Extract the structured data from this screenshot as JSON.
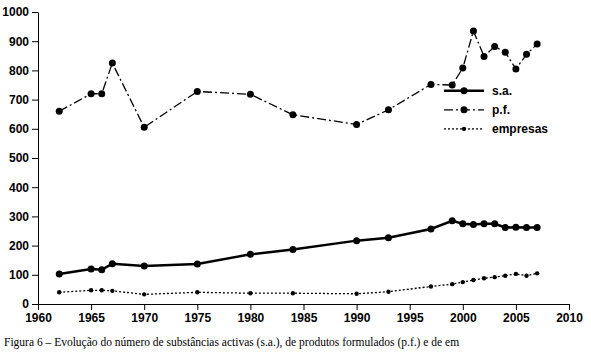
{
  "chart_data": {
    "type": "line",
    "title": "Figura 6 – Evolução do número de substâncias activas (s.a.), de produtos formulados (p.f.) e de em",
    "x": [
      1962,
      1965,
      1966,
      1967,
      1970,
      1975,
      1980,
      1984,
      1990,
      1993,
      1997,
      1999,
      2000,
      2001,
      2002,
      2003,
      2004,
      2005,
      2006,
      2007
    ],
    "series": [
      {
        "name": "s.a.",
        "color": "#000000",
        "line_style": "solid",
        "marker": "circle",
        "values": [
          103,
          120,
          117,
          138,
          130,
          137,
          170,
          187,
          217,
          227,
          257,
          285,
          275,
          272,
          275,
          275,
          262,
          263,
          262,
          262
        ]
      },
      {
        "name": "p.f.",
        "color": "#000000",
        "line_style": "dashdot",
        "marker": "circle",
        "values": [
          660,
          720,
          720,
          825,
          605,
          728,
          718,
          648,
          615,
          665,
          752,
          750,
          808,
          935,
          848,
          882,
          862,
          805,
          855,
          890
        ]
      },
      {
        "name": "empresas",
        "color": "#000000",
        "line_style": "dotted",
        "marker": "circle",
        "values": [
          40,
          47,
          47,
          45,
          33,
          40,
          37,
          37,
          35,
          42,
          60,
          68,
          75,
          82,
          88,
          92,
          97,
          103,
          97,
          105
        ]
      }
    ],
    "xlim": [
      1960,
      2010
    ],
    "xticks": [
      1960,
      1965,
      1970,
      1975,
      1980,
      1985,
      1990,
      1995,
      2000,
      2005,
      2010
    ],
    "ylim": [
      0,
      1000
    ],
    "yticks": [
      0,
      100,
      200,
      300,
      400,
      500,
      600,
      700,
      800,
      900,
      1000
    ],
    "grid": false,
    "legend": "right"
  }
}
